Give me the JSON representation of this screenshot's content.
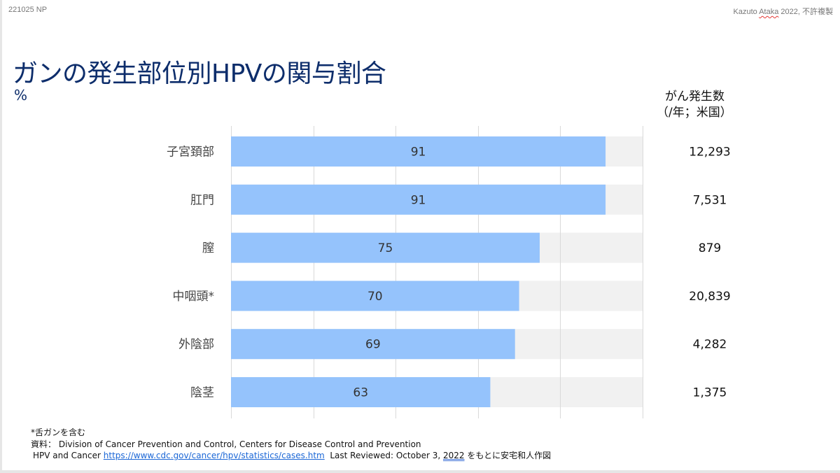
{
  "header": {
    "left": "221025 NP",
    "right_author": "Kazuto",
    "right_author_last": "Ataka",
    "right_rest": "2022, 不許複製"
  },
  "title": "ガンの発生部位別HPVの関与割合",
  "unit": "%",
  "count_header": {
    "line1": "がん発生数",
    "line2": "（/年；米国）"
  },
  "colors": {
    "bar": "#95c3fc",
    "track": "#f1f1f1",
    "grid": "#d9d9d9",
    "title": "#0d2d6b"
  },
  "chart_data": {
    "type": "bar",
    "orientation": "horizontal",
    "title": "ガンの発生部位別HPVの関与割合",
    "xlabel": "%",
    "xlim": [
      0,
      100
    ],
    "grid": true,
    "grid_step": 20,
    "categories": [
      "子宮頚部",
      "肛門",
      "膣",
      "中咽頭*",
      "外陰部",
      "陰茎"
    ],
    "values": [
      91,
      91,
      75,
      70,
      69,
      63
    ],
    "counts": [
      "12,293",
      "7,531",
      "879",
      "20,839",
      "4,282",
      "1,375"
    ],
    "counts_label": "がん発生数（/年；米国）"
  },
  "notes": {
    "footnote": "*舌ガンを含む",
    "source_prefix": "資料：",
    "source": "Division of Cancer Prevention and Control, Centers for Disease Control and Prevention",
    "line3_prefix": "HPV and Cancer",
    "link": "https://www.cdc.gov/cancer/hpv/statistics/cases.htm",
    "reviewed": "Last Reviewed: October 3,",
    "reviewed_year": "2022",
    "suffix": "をもとに安宅和人作図"
  }
}
